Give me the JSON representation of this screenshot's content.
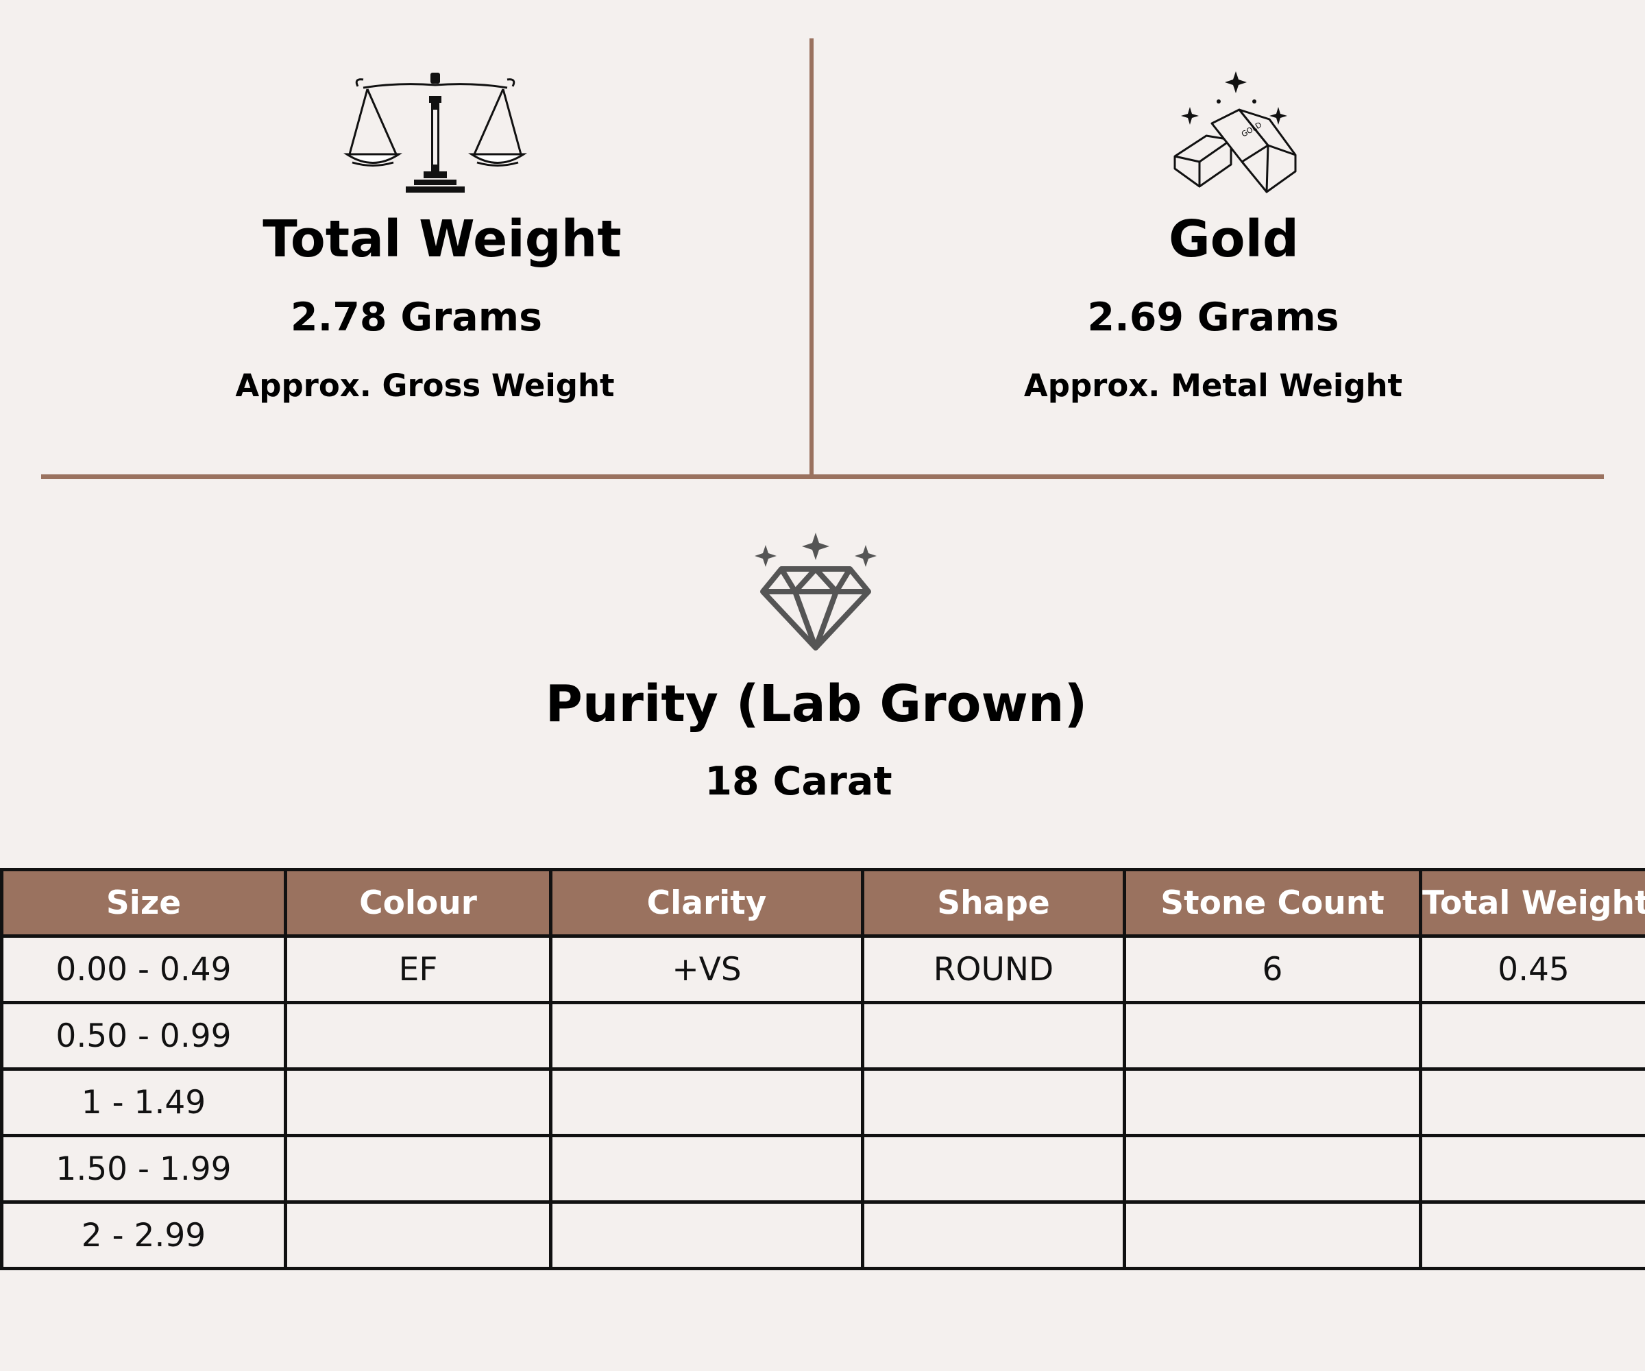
{
  "total_weight": {
    "title": "Total Weight",
    "value": "2.78 Grams",
    "caption": "Approx. Gross Weight",
    "icon": "balance-scale-icon"
  },
  "gold": {
    "title": "Gold",
    "value": "2.69 Grams",
    "caption": "Approx. Metal Weight",
    "icon": "gold-bars-icon",
    "bar_label": "GOLD"
  },
  "purity": {
    "title": "Purity (Lab Grown)",
    "value": "18 Carat",
    "icon": "diamond-icon"
  },
  "colors": {
    "accent": "#9a725f",
    "background": "#f4f0ee",
    "border": "#111111"
  },
  "table": {
    "headers": [
      "Size",
      "Colour",
      "Clarity",
      "Shape",
      "Stone Count",
      "Total Weight"
    ],
    "rows": [
      [
        "0.00 - 0.49",
        "EF",
        "+VS",
        "ROUND",
        "6",
        "0.45"
      ],
      [
        "0.50 - 0.99",
        "",
        "",
        "",
        "",
        ""
      ],
      [
        "1 - 1.49",
        "",
        "",
        "",
        "",
        ""
      ],
      [
        "1.50 - 1.99",
        "",
        "",
        "",
        "",
        ""
      ],
      [
        "2 - 2.99",
        "",
        "",
        "",
        "",
        ""
      ]
    ]
  }
}
